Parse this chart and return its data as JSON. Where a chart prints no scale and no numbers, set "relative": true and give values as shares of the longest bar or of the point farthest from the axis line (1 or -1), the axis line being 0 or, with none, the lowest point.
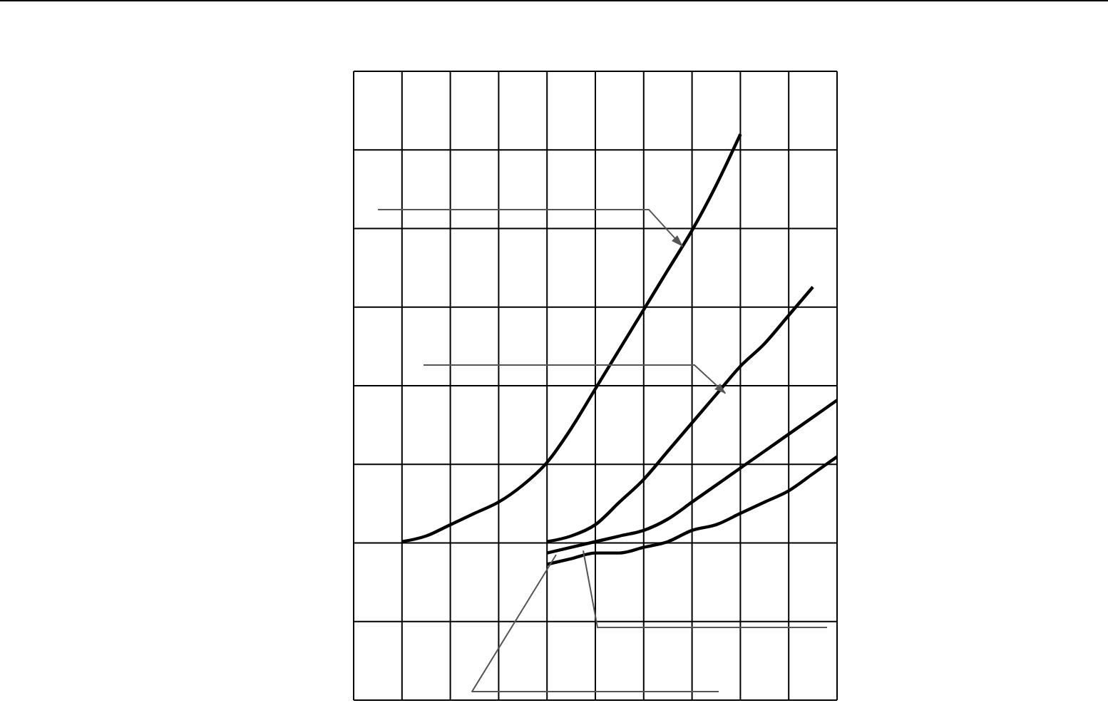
{
  "chart_data": {
    "type": "line",
    "relative": true,
    "grid": true,
    "marker": "none",
    "line_style": "solid",
    "tick_labels": false,
    "categories": [
      null,
      null,
      null,
      null,
      null,
      null,
      null,
      null,
      null,
      null,
      null,
      null,
      null,
      null,
      null,
      null,
      null,
      null,
      null,
      null,
      null
    ],
    "series": [
      {
        "color": "#000000",
        "values": [
          null,
          null,
          0.28,
          0.29,
          0.31,
          0.33,
          0.35,
          0.38,
          0.42,
          0.48,
          0.55,
          0.62,
          0.69,
          0.76,
          0.83,
          0.91,
          1,
          null,
          null,
          null,
          null
        ]
      },
      {
        "color": "#000000",
        "values": [
          null,
          null,
          null,
          null,
          null,
          null,
          null,
          null,
          0.28,
          0.29,
          0.31,
          0.35,
          0.39,
          0.44,
          0.49,
          0.54,
          0.59,
          0.63,
          0.68,
          0.73,
          null
        ]
      },
      {
        "color": "#000000",
        "values": [
          null,
          null,
          null,
          null,
          null,
          null,
          null,
          null,
          0.26,
          0.27,
          0.28,
          0.29,
          0.3,
          0.32,
          0.35,
          0.38,
          0.41,
          0.44,
          0.47,
          0.5,
          0.53
        ]
      },
      {
        "color": "#000000",
        "values": [
          null,
          null,
          null,
          null,
          null,
          null,
          null,
          null,
          0.24,
          0.25,
          0.26,
          0.26,
          0.27,
          0.28,
          0.3,
          0.31,
          0.33,
          0.35,
          0.37,
          0.4,
          0.43
        ]
      }
    ]
  }
}
